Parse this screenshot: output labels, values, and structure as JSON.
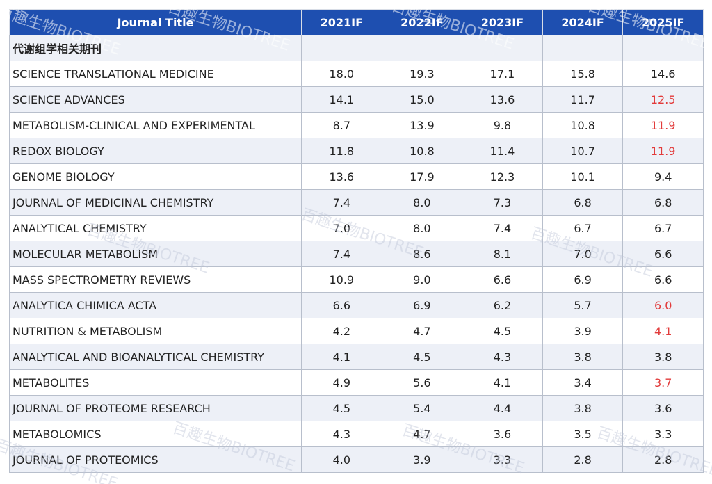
{
  "header": {
    "title_col": "Journal Title",
    "years": [
      "2021IF",
      "2022IF",
      "2023IF",
      "2024IF",
      "2025IF"
    ]
  },
  "section_label": "代谢组学相关期刊",
  "rows": [
    {
      "title": "SCIENCE TRANSLATIONAL MEDICINE",
      "v": [
        "18.0",
        "19.3",
        "17.1",
        "15.8",
        "14.6"
      ],
      "up": false
    },
    {
      "title": "SCIENCE ADVANCES",
      "v": [
        "14.1",
        "15.0",
        "13.6",
        "11.7",
        "12.5"
      ],
      "up": true
    },
    {
      "title": "METABOLISM-CLINICAL AND EXPERIMENTAL",
      "v": [
        "8.7",
        "13.9",
        "9.8",
        "10.8",
        "11.9"
      ],
      "up": true
    },
    {
      "title": "REDOX BIOLOGY",
      "v": [
        "11.8",
        "10.8",
        "11.4",
        "10.7",
        "11.9"
      ],
      "up": true
    },
    {
      "title": "GENOME BIOLOGY",
      "v": [
        "13.6",
        "17.9",
        "12.3",
        "10.1",
        "9.4"
      ],
      "up": false
    },
    {
      "title": "JOURNAL OF MEDICINAL CHEMISTRY",
      "v": [
        "7.4",
        "8.0",
        "7.3",
        "6.8",
        "6.8"
      ],
      "up": false
    },
    {
      "title": "ANALYTICAL CHEMISTRY",
      "v": [
        "7.0",
        "8.0",
        "7.4",
        "6.7",
        "6.7"
      ],
      "up": false
    },
    {
      "title": "MOLECULAR METABOLISM",
      "v": [
        "7.4",
        "8.6",
        "8.1",
        "7.0",
        "6.6"
      ],
      "up": false
    },
    {
      "title": "MASS SPECTROMETRY REVIEWS",
      "v": [
        "10.9",
        "9.0",
        "6.6",
        "6.9",
        "6.6"
      ],
      "up": false
    },
    {
      "title": "ANALYTICA CHIMICA ACTA",
      "v": [
        "6.6",
        "6.9",
        "6.2",
        "5.7",
        "6.0"
      ],
      "up": true
    },
    {
      "title": "NUTRITION & METABOLISM",
      "v": [
        "4.2",
        "4.7",
        "4.5",
        "3.9",
        "4.1"
      ],
      "up": true
    },
    {
      "title": "ANALYTICAL AND BIOANALYTICAL CHEMISTRY",
      "v": [
        "4.1",
        "4.5",
        "4.3",
        "3.8",
        "3.8"
      ],
      "up": false
    },
    {
      "title": "METABOLITES",
      "v": [
        "4.9",
        "5.6",
        "4.1",
        "3.4",
        "3.7"
      ],
      "up": true
    },
    {
      "title": "JOURNAL OF PROTEOME RESEARCH",
      "v": [
        "4.5",
        "5.4",
        "4.4",
        "3.8",
        "3.6"
      ],
      "up": false
    },
    {
      "title": "METABOLOMICS",
      "v": [
        "4.3",
        "4.7",
        "3.6",
        "3.5",
        "3.3"
      ],
      "up": false
    },
    {
      "title": "JOURNAL OF PROTEOMICS",
      "v": [
        "4.0",
        "3.9",
        "3.3",
        "2.8",
        "2.8"
      ],
      "up": false
    }
  ],
  "colors": {
    "header_bg": "#1e4fb0",
    "row_alt_bg": "#edf0f7",
    "increase_text": "#e23b3b"
  },
  "watermark": {
    "text": "百趣生物BIOTREE"
  }
}
